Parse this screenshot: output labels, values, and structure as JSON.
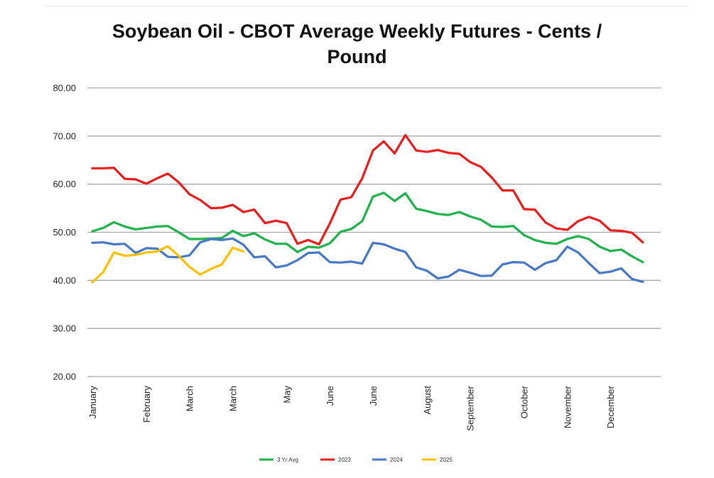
{
  "chart_data": {
    "type": "line",
    "title": "Soybean Oil - CBOT Average Weekly Futures - Cents / Pound",
    "title_lines": [
      "Soybean Oil - CBOT Average Weekly Futures - Cents /",
      "Pound"
    ],
    "xlabel": "",
    "ylabel": "",
    "ylim": [
      20,
      80
    ],
    "yticks": [
      "20.00",
      "30.00",
      "40.00",
      "50.00",
      "60.00",
      "70.00",
      "80.00"
    ],
    "ytick_values": [
      20,
      30,
      40,
      50,
      60,
      70,
      80
    ],
    "grid": true,
    "legend_position": "bottom-center",
    "x_count": 53,
    "x_tick_labels": [
      {
        "index": 0,
        "label": "January"
      },
      {
        "index": 5,
        "label": "February"
      },
      {
        "index": 9,
        "label": "March"
      },
      {
        "index": 13,
        "label": "March"
      },
      {
        "index": 18,
        "label": "May"
      },
      {
        "index": 22,
        "label": "June"
      },
      {
        "index": 26,
        "label": "June"
      },
      {
        "index": 31,
        "label": "August"
      },
      {
        "index": 35,
        "label": "September"
      },
      {
        "index": 40,
        "label": "October"
      },
      {
        "index": 44,
        "label": "November"
      },
      {
        "index": 48,
        "label": "December"
      }
    ],
    "series": [
      {
        "name": "3 Yr Avg",
        "color": "#1fb14b",
        "values": [
          50.2,
          50.9,
          52.1,
          51.2,
          50.6,
          50.9,
          51.2,
          51.3,
          50.0,
          48.6,
          48.6,
          48.7,
          48.8,
          50.3,
          49.2,
          49.8,
          48.5,
          47.6,
          47.6,
          45.9,
          47.0,
          46.8,
          47.7,
          50.1,
          50.7,
          52.3,
          57.4,
          58.2,
          56.5,
          58.1,
          54.9,
          54.4,
          53.8,
          53.6,
          54.2,
          53.3,
          52.6,
          51.2,
          51.1,
          51.3,
          49.4,
          48.4,
          47.8,
          47.6,
          48.6,
          49.2,
          48.6,
          47.0,
          46.1,
          46.4,
          45.0,
          43.8
        ]
      },
      {
        "name": "2023",
        "color": "#e81c1c",
        "values": [
          63.3,
          63.3,
          63.4,
          61.1,
          61.0,
          60.1,
          61.2,
          62.2,
          60.4,
          57.9,
          56.7,
          55.0,
          55.1,
          55.7,
          54.2,
          54.7,
          51.9,
          52.4,
          51.9,
          47.6,
          48.4,
          47.5,
          51.8,
          56.8,
          57.3,
          61.2,
          67.0,
          68.9,
          66.4,
          70.2,
          67.0,
          66.7,
          67.1,
          66.5,
          66.3,
          64.6,
          63.6,
          61.4,
          58.7,
          58.7,
          54.8,
          54.7,
          52.0,
          50.8,
          50.5,
          52.3,
          53.2,
          52.4,
          50.4,
          50.3,
          49.9,
          47.9
        ]
      },
      {
        "name": "2024",
        "color": "#4677c4",
        "values": [
          47.8,
          47.9,
          47.5,
          47.6,
          45.7,
          46.7,
          46.6,
          44.9,
          44.8,
          45.2,
          47.9,
          48.6,
          48.4,
          48.7,
          47.4,
          44.8,
          45.0,
          42.7,
          43.1,
          44.2,
          45.7,
          45.8,
          43.8,
          43.7,
          43.9,
          43.5,
          47.8,
          47.5,
          46.6,
          45.9,
          42.7,
          42.0,
          40.4,
          40.8,
          42.2,
          41.6,
          40.9,
          41.0,
          43.3,
          43.8,
          43.7,
          42.2,
          43.6,
          44.2,
          47.0,
          45.8,
          43.6,
          41.5,
          41.8,
          42.5,
          40.3,
          39.7
        ]
      },
      {
        "name": "2025",
        "color": "#ffc000",
        "values": [
          39.6,
          41.7,
          45.8,
          45.1,
          45.3,
          45.8,
          46.0,
          47.1,
          45.1,
          42.8,
          41.2,
          42.4,
          43.3,
          46.8,
          46.0
        ]
      }
    ]
  }
}
